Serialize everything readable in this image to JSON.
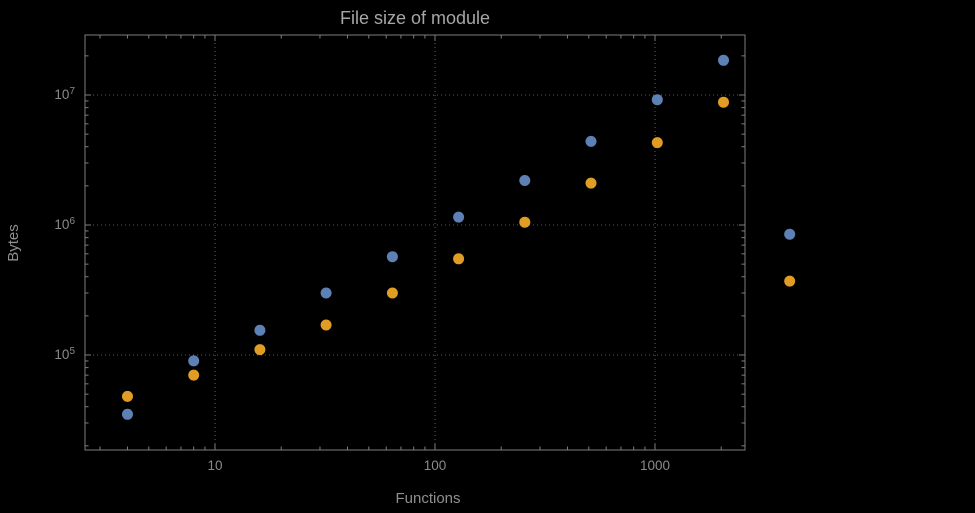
{
  "chart": {
    "title": "File size of module",
    "xlabel": "Functions",
    "ylabel": "Bytes"
  },
  "chart_data": {
    "type": "scatter",
    "title": "File size of module",
    "xlabel": "Functions",
    "ylabel": "Bytes",
    "x_scale": "log",
    "y_scale": "log",
    "grid": true,
    "legend": "none",
    "xlim": [
      2.6,
      2570
    ],
    "ylim": [
      18600,
      28700000
    ],
    "x": [
      4,
      8,
      16,
      32,
      64,
      128,
      256,
      512,
      1024,
      2048,
      4096
    ],
    "series": [
      {
        "name": "series-blue",
        "color": "#5e81b5",
        "values": [
          35000,
          90000,
          155000,
          300000,
          570000,
          1150000,
          2200000,
          4400000,
          9200000,
          18500000,
          850000
        ]
      },
      {
        "name": "series-orange",
        "color": "#e19c24",
        "values": [
          48000,
          70000,
          110000,
          170000,
          300000,
          550000,
          1050000,
          2100000,
          4300000,
          8800000,
          370000
        ]
      }
    ],
    "x_ticks": [
      {
        "value": 10,
        "label": "10"
      },
      {
        "value": 100,
        "label": "100"
      },
      {
        "value": 1000,
        "label": "1000"
      }
    ],
    "y_ticks": [
      {
        "value": 100000,
        "mantissa": "10",
        "exponent": "5"
      },
      {
        "value": 1000000,
        "mantissa": "10",
        "exponent": "6"
      },
      {
        "value": 10000000,
        "mantissa": "10",
        "exponent": "7"
      }
    ],
    "colors": {
      "frame": "#7e7e7e",
      "grid": "#5f5f5f",
      "tick": "#7e7e7e"
    }
  }
}
